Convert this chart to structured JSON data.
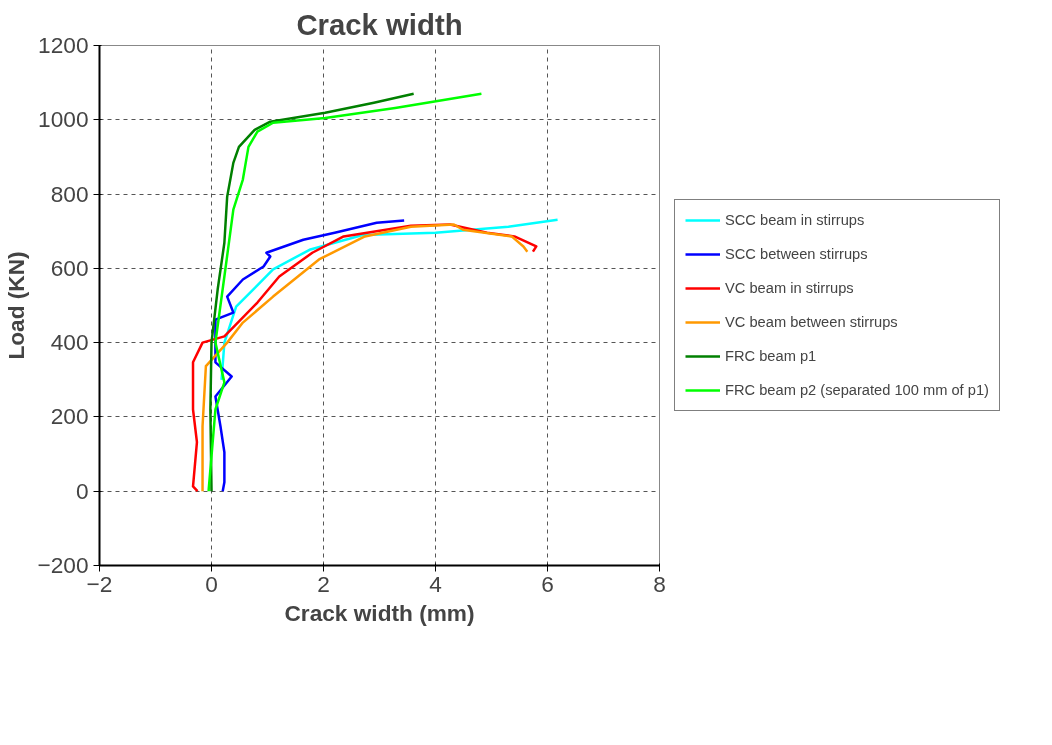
{
  "chart_data": {
    "type": "line",
    "title": "Crack width",
    "xlabel": "Crack width (mm)",
    "ylabel": "Load (KN)",
    "xlim": [
      -2,
      8
    ],
    "xticks": [
      -2,
      0,
      2,
      4,
      6,
      8
    ],
    "ylim": [
      -200,
      1200
    ],
    "yticks": [
      -200,
      0,
      200,
      400,
      600,
      800,
      1000,
      1200
    ],
    "grid": true,
    "legend": "right",
    "marker": "none",
    "line_style": "solid",
    "series": [
      {
        "name": "SCC beam in stirrups",
        "color": "#00ffff",
        "x": [
          0.18,
          0.23,
          0.44,
          1.1,
          1.75,
          2.7,
          4.0,
          5.3,
          6.18
        ],
        "values": [
          300,
          400,
          497,
          597,
          650,
          690,
          696,
          712,
          731
        ]
      },
      {
        "name": "SCC between stirrups",
        "color": "#0000ff",
        "x": [
          0.2,
          0.23,
          0.23,
          0.16,
          0.07,
          0.36,
          0.07,
          0.07,
          0.39,
          0.28,
          0.56,
          0.93,
          1.05,
          0.98,
          1.64,
          2.2,
          2.95,
          3.44
        ],
        "values": [
          0,
          24,
          105,
          175,
          255,
          309,
          347,
          462,
          481,
          524,
          570,
          605,
          632,
          642,
          677,
          696,
          723,
          729
        ]
      },
      {
        "name": "VC beam in stirrups",
        "color": "#ff0000",
        "x": [
          -0.25,
          -0.33,
          -0.26,
          -0.33,
          -0.33,
          -0.16,
          0.23,
          0.82,
          1.21,
          1.8,
          2.36,
          3.56,
          4.26,
          4.92,
          5.41,
          5.8,
          5.74
        ],
        "values": [
          0,
          13,
          132,
          220,
          347,
          400,
          417,
          508,
          578,
          642,
          686,
          715,
          718,
          696,
          686,
          659,
          645
        ]
      },
      {
        "name": "VC beam between stirrups",
        "color": "#ff9900",
        "x": [
          -0.16,
          -0.16,
          -0.16,
          -0.1,
          0.28,
          0.56,
          1.1,
          1.92,
          2.74,
          3.56,
          4.33,
          4.49,
          5.36,
          5.57,
          5.64
        ],
        "values": [
          0,
          13,
          175,
          337,
          400,
          454,
          524,
          624,
          686,
          712,
          718,
          704,
          686,
          659,
          645
        ]
      },
      {
        "name": "FRC beam p1",
        "color": "#008000",
        "x": [
          0.0,
          0.0,
          -0.02,
          0.0,
          0.11,
          0.23,
          0.28,
          0.39,
          0.49,
          0.77,
          1.05,
          2.03,
          2.9,
          3.61
        ],
        "values": [
          0,
          5,
          220,
          400,
          543,
          669,
          793,
          884,
          927,
          973,
          995,
          1019,
          1046,
          1070
        ]
      },
      {
        "name": "FRC beam p2 (separated 100 mm of p1)",
        "color": "#00ff00",
        "x": [
          -0.05,
          -0.05,
          0.07,
          0.23,
          0.07,
          0.23,
          0.39,
          0.56,
          0.66,
          0.82,
          1.1,
          2.03,
          3.28,
          4.82
        ],
        "values": [
          0,
          5,
          220,
          293,
          400,
          578,
          758,
          839,
          927,
          968,
          992,
          1005,
          1032,
          1070
        ]
      }
    ]
  }
}
